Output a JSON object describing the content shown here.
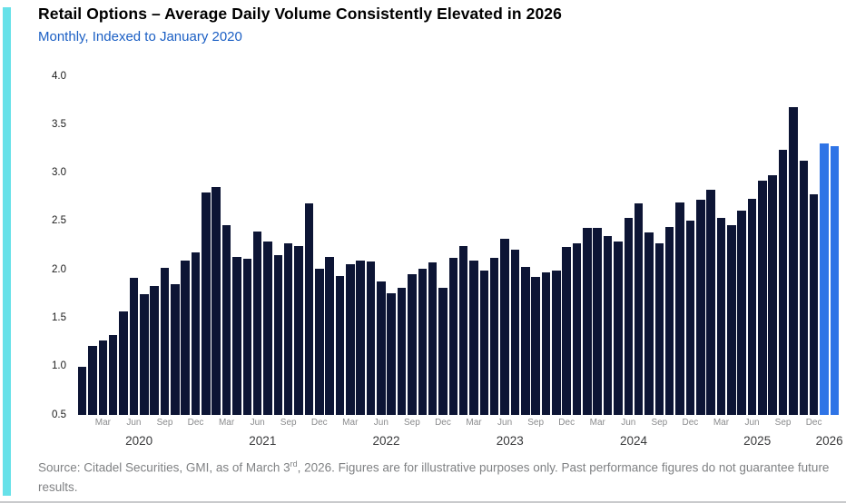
{
  "header": {
    "title": "Retail Options – Average Daily Volume Consistently Elevated in 2026",
    "subtitle": "Monthly, Indexed to January 2020"
  },
  "footer": {
    "source_prefix": "Source: Citadel Securities, GMI, as of March 3",
    "source_superscript": "rd",
    "source_suffix": ", 2026. Figures are for illustrative purposes only. Past performance figures do not guarantee future results."
  },
  "colors": {
    "accent_stripe": "#67E1E9",
    "bar": "#0D1535",
    "bar_highlight": "#2F74E6",
    "subtitle": "#1B5FC4",
    "axis_text": "#1B1B1B",
    "month_label": "#8A8B8D",
    "year_label": "#38393B",
    "source_text": "#808284",
    "bottom_rule": "#C9CACC"
  },
  "chart_data": {
    "type": "bar",
    "title": "Retail Options – Average Daily Volume Consistently Elevated in 2026",
    "subtitle": "Monthly, Indexed to January 2020",
    "xlabel": "",
    "ylabel": "",
    "ylim": [
      0.5,
      4.0
    ],
    "yticks": [
      4.0,
      3.5,
      3.0,
      2.5,
      2.0,
      1.5,
      1.0,
      0.5
    ],
    "grid": false,
    "legend": false,
    "month_tick_labels": [
      "Mar",
      "Jun",
      "Sep",
      "Dec"
    ],
    "year_labels": [
      "2020",
      "2021",
      "2022",
      "2023",
      "2024",
      "2025",
      "2026"
    ],
    "highlight_categories": [
      "Jan 2026",
      "Feb 2026"
    ],
    "categories": [
      "Jan 2020",
      "Feb 2020",
      "Mar 2020",
      "Apr 2020",
      "May 2020",
      "Jun 2020",
      "Jul 2020",
      "Aug 2020",
      "Sep 2020",
      "Oct 2020",
      "Nov 2020",
      "Dec 2020",
      "Jan 2021",
      "Feb 2021",
      "Mar 2021",
      "Apr 2021",
      "May 2021",
      "Jun 2021",
      "Jul 2021",
      "Aug 2021",
      "Sep 2021",
      "Oct 2021",
      "Nov 2021",
      "Dec 2021",
      "Jan 2022",
      "Feb 2022",
      "Mar 2022",
      "Apr 2022",
      "May 2022",
      "Jun 2022",
      "Jul 2022",
      "Aug 2022",
      "Sep 2022",
      "Oct 2022",
      "Nov 2022",
      "Dec 2022",
      "Jan 2023",
      "Feb 2023",
      "Mar 2023",
      "Apr 2023",
      "May 2023",
      "Jun 2023",
      "Jul 2023",
      "Aug 2023",
      "Sep 2023",
      "Oct 2023",
      "Nov 2023",
      "Dec 2023",
      "Jan 2024",
      "Feb 2024",
      "Mar 2024",
      "Apr 2024",
      "May 2024",
      "Jun 2024",
      "Jul 2024",
      "Aug 2024",
      "Sep 2024",
      "Oct 2024",
      "Nov 2024",
      "Dec 2024",
      "Jan 2025",
      "Feb 2025",
      "Mar 2025",
      "Apr 2025",
      "May 2025",
      "Jun 2025",
      "Jul 2025",
      "Aug 2025",
      "Sep 2025",
      "Oct 2025",
      "Nov 2025",
      "Dec 2025",
      "Jan 2026",
      "Feb 2026"
    ],
    "values": [
      1.0,
      1.21,
      1.27,
      1.33,
      1.57,
      1.92,
      1.75,
      1.83,
      2.02,
      1.85,
      2.1,
      2.18,
      2.8,
      2.86,
      2.46,
      2.13,
      2.11,
      2.4,
      2.29,
      2.15,
      2.27,
      2.25,
      2.69,
      2.01,
      2.13,
      1.94,
      2.06,
      2.1,
      2.09,
      1.88,
      1.76,
      1.81,
      1.95,
      2.01,
      2.08,
      1.81,
      2.12,
      2.25,
      2.1,
      1.99,
      2.12,
      2.32,
      2.21,
      2.03,
      1.93,
      1.97,
      1.99,
      2.24,
      2.27,
      2.43,
      2.43,
      2.35,
      2.29,
      2.54,
      2.69,
      2.39,
      2.27,
      2.44,
      2.7,
      2.51,
      2.72,
      2.83,
      2.54,
      2.46,
      2.61,
      2.73,
      2.92,
      2.98,
      3.24,
      3.68,
      3.13,
      2.78,
      3.31,
      3.28
    ]
  }
}
